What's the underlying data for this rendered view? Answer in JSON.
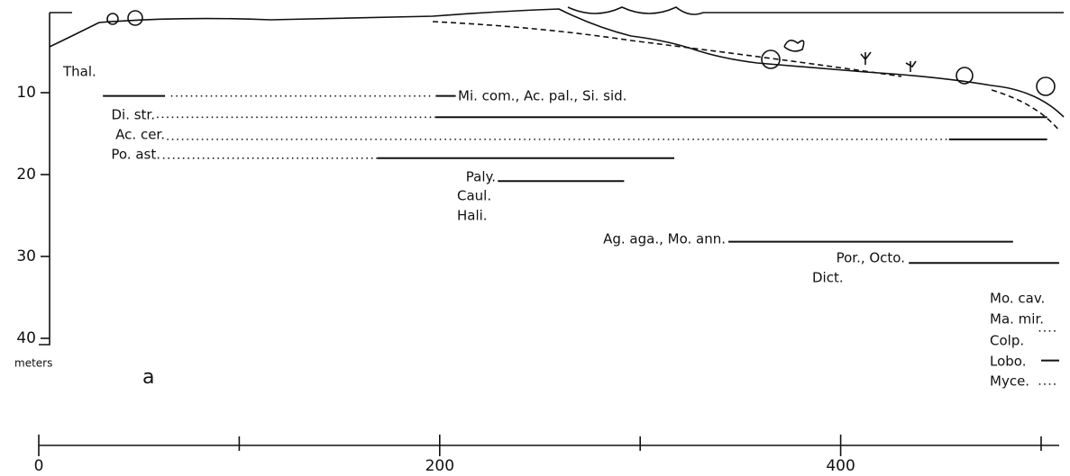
{
  "chart_data": {
    "type": "zonation",
    "ylabel": "meters",
    "panel": "a",
    "xlim": [
      0,
      509
    ],
    "xticks": [
      0,
      200,
      400
    ],
    "xminor": [
      100,
      300,
      500
    ],
    "ylim": [
      0,
      40
    ],
    "yticks": [
      10,
      20,
      30,
      40
    ],
    "color": "#111",
    "entries": [
      {
        "label": "Thal.",
        "segments": []
      },
      {
        "label": "Mi. com., Ac. pal., Si. sid.",
        "segments": [
          {
            "x": [
              32,
              63
            ],
            "depth": 10.4,
            "style": "solid"
          },
          {
            "x": [
              66,
              197
            ],
            "depth": 10.4,
            "style": "dotted"
          },
          {
            "x": [
              198,
              208
            ],
            "depth": 10.4,
            "style": "solid"
          }
        ]
      },
      {
        "label": "Di. str.",
        "segments": [
          {
            "x": [
              59,
              198
            ],
            "depth": 13,
            "style": "dotted"
          },
          {
            "x": [
              198,
              503
            ],
            "depth": 13,
            "style": "solid"
          }
        ]
      },
      {
        "label": "Ac. cer.",
        "segments": [
          {
            "x": [
              64,
              453
            ],
            "depth": 15.7,
            "style": "dotted"
          },
          {
            "x": [
              454,
              503
            ],
            "depth": 15.7,
            "style": "solid"
          }
        ]
      },
      {
        "label": "Po. ast.",
        "segments": [
          {
            "x": [
              62,
              169
            ],
            "depth": 18,
            "style": "dotted"
          },
          {
            "x": [
              169,
              317
            ],
            "depth": 18,
            "style": "solid"
          }
        ]
      },
      {
        "label": "Paly.",
        "segments": [
          {
            "x": [
              229,
              292
            ],
            "depth": 20.8,
            "style": "solid"
          }
        ]
      },
      {
        "label": "Caul.",
        "segments": []
      },
      {
        "label": "Hali.",
        "segments": []
      },
      {
        "label": "Ag. aga., Mo. ann.",
        "segments": [
          {
            "x": [
              344,
              486
            ],
            "depth": 28.2,
            "style": "solid"
          }
        ]
      },
      {
        "label": "Por., Octo.",
        "segments": [
          {
            "x": [
              434,
              509
            ],
            "depth": 30.8,
            "style": "solid"
          }
        ]
      },
      {
        "label": "Dict.",
        "segments": []
      },
      {
        "label": "Mo. cav.",
        "segments": []
      },
      {
        "label": "Ma. mir.",
        "segments": []
      },
      {
        "label": "Colp.",
        "segments": [
          {
            "x": [
              499,
              508
            ],
            "depth": 39.1,
            "style": "dotted"
          }
        ]
      },
      {
        "label": "Lobo.",
        "segments": [
          {
            "x": [
              500,
              509
            ],
            "depth": 42.7,
            "style": "solid"
          }
        ]
      },
      {
        "label": "Myce.",
        "segments": [
          {
            "x": [
              499,
              508
            ],
            "depth": 45.6,
            "style": "dotted"
          }
        ]
      }
    ]
  }
}
